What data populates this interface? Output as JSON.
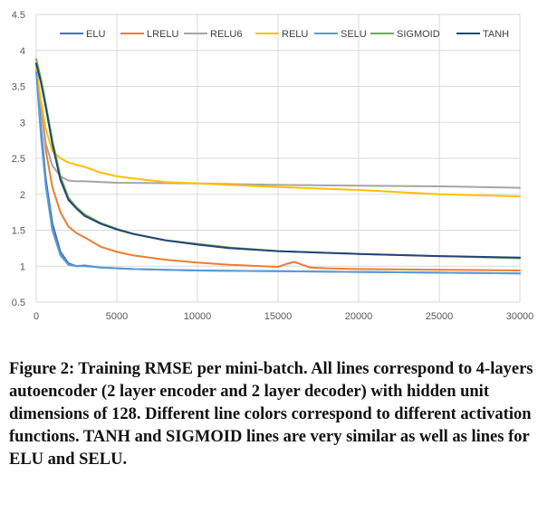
{
  "chart_data": {
    "type": "line",
    "xlim": [
      0,
      30000
    ],
    "ylim": [
      0.5,
      4.5
    ],
    "x_ticks": [
      "0",
      "5000",
      "10000",
      "15000",
      "20000",
      "25000",
      "30000"
    ],
    "y_ticks": [
      "0.5",
      "1",
      "1.5",
      "2",
      "2.5",
      "3",
      "3.5",
      "4",
      "4.5"
    ],
    "grid": true,
    "legend_position": "top",
    "series": [
      {
        "name": "ELU",
        "color": "#4472C4",
        "x": [
          0,
          300,
          600,
          1000,
          1500,
          2000,
          2500,
          3000,
          4000,
          6000,
          8000,
          10000,
          15000,
          20000,
          25000,
          30000
        ],
        "y": [
          3.75,
          2.9,
          2.2,
          1.6,
          1.2,
          1.04,
          1.0,
          1.01,
          0.98,
          0.96,
          0.95,
          0.94,
          0.93,
          0.92,
          0.91,
          0.9
        ]
      },
      {
        "name": "LRELU",
        "color": "#ED7D31",
        "x": [
          0,
          300,
          600,
          1000,
          1500,
          2000,
          2500,
          3000,
          4000,
          5000,
          6000,
          8000,
          10000,
          12000,
          15000,
          15500,
          16000,
          16500,
          17000,
          18000,
          20000,
          25000,
          30000
        ],
        "y": [
          3.78,
          3.2,
          2.6,
          2.1,
          1.75,
          1.55,
          1.46,
          1.4,
          1.27,
          1.2,
          1.15,
          1.09,
          1.05,
          1.02,
          0.99,
          1.03,
          1.06,
          1.02,
          0.98,
          0.97,
          0.96,
          0.95,
          0.94
        ]
      },
      {
        "name": "RELU6",
        "color": "#A5A5A5",
        "x": [
          0,
          300,
          600,
          1000,
          1500,
          2000,
          2500,
          3000,
          5000,
          10000,
          15000,
          20000,
          25000,
          30000
        ],
        "y": [
          3.8,
          3.2,
          2.7,
          2.4,
          2.25,
          2.19,
          2.18,
          2.18,
          2.16,
          2.15,
          2.13,
          2.12,
          2.11,
          2.09
        ]
      },
      {
        "name": "RELU",
        "color": "#FFC000",
        "x": [
          0,
          300,
          600,
          1000,
          1500,
          2000,
          3000,
          4000,
          5000,
          6000,
          8000,
          10000,
          15000,
          20000,
          25000,
          30000
        ],
        "y": [
          3.75,
          3.3,
          2.9,
          2.6,
          2.5,
          2.44,
          2.38,
          2.3,
          2.25,
          2.22,
          2.17,
          2.15,
          2.1,
          2.06,
          2.0,
          1.97
        ]
      },
      {
        "name": "SELU",
        "color": "#5B9BD5",
        "x": [
          0,
          300,
          600,
          1000,
          1500,
          2000,
          2500,
          3000,
          4000,
          6000,
          8000,
          10000,
          15000,
          20000,
          25000,
          30000
        ],
        "y": [
          3.7,
          2.8,
          2.1,
          1.5,
          1.15,
          1.02,
          1.0,
          1.0,
          0.98,
          0.96,
          0.95,
          0.94,
          0.93,
          0.92,
          0.91,
          0.9
        ]
      },
      {
        "name": "SIGMOID",
        "color": "#70AD47",
        "x": [
          0,
          300,
          600,
          1000,
          1500,
          2000,
          2500,
          3000,
          4000,
          5000,
          6000,
          8000,
          10000,
          12000,
          15000,
          20000,
          25000,
          30000
        ],
        "y": [
          3.88,
          3.6,
          3.25,
          2.75,
          2.25,
          1.95,
          1.82,
          1.72,
          1.6,
          1.52,
          1.45,
          1.36,
          1.31,
          1.26,
          1.21,
          1.17,
          1.14,
          1.11
        ]
      },
      {
        "name": "TANH",
        "color": "#264478",
        "x": [
          0,
          300,
          600,
          1000,
          1500,
          2000,
          2500,
          3000,
          4000,
          5000,
          6000,
          8000,
          10000,
          12000,
          15000,
          20000,
          25000,
          30000
        ],
        "y": [
          3.82,
          3.55,
          3.2,
          2.7,
          2.2,
          1.92,
          1.8,
          1.7,
          1.59,
          1.51,
          1.45,
          1.36,
          1.3,
          1.25,
          1.21,
          1.17,
          1.14,
          1.12
        ]
      }
    ]
  },
  "caption": "Figure 2: Training RMSE per mini-batch. All lines correspond to 4-layers autoencoder (2 layer encoder and 2 layer decoder) with hidden unit dimensions of 128. Different line colors correspond to different activation functions. TANH and SIGMOID lines are very similar as well as lines for ELU and SELU."
}
